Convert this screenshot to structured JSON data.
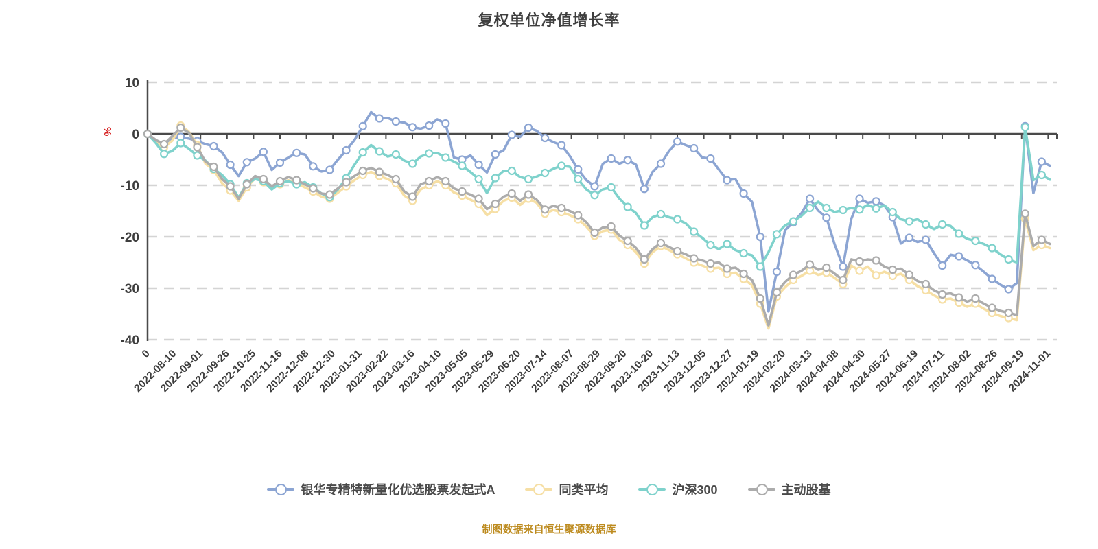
{
  "caption": "制图数据来自恒生聚源数据库",
  "chart_data": {
    "type": "line",
    "title": "复权单位净值增长率",
    "ylabel": "%",
    "ylabel_color": "#d62222",
    "ylim": [
      -40,
      10
    ],
    "y_ticks": [
      10,
      0,
      -10,
      -20,
      -30,
      -40
    ],
    "grid": "dashed horizontal gridlines, x-axis line drawn at zero with down ticks",
    "legend_position": "bottom",
    "marker_style": "white-filled circles with series-colored ring, shown every 2nd sample",
    "x_tick_labels": [
      "0",
      "2022-08-10",
      "2022-09-01",
      "2022-09-26",
      "2022-10-25",
      "2022-11-16",
      "2022-12-08",
      "2022-12-30",
      "2023-01-31",
      "2023-02-22",
      "2023-03-16",
      "2023-04-10",
      "2023-05-05",
      "2023-05-29",
      "2023-06-20",
      "2023-07-14",
      "2023-08-07",
      "2023-08-29",
      "2023-09-20",
      "2023-10-20",
      "2023-11-13",
      "2023-12-05",
      "2023-12-27",
      "2024-01-19",
      "2024-02-20",
      "2024-03-13",
      "2024-04-08",
      "2024-04-30",
      "2024-05-27",
      "2024-06-19",
      "2024-07-11",
      "2024-08-02",
      "2024-08-26",
      "2024-09-19",
      "2024-11-01"
    ],
    "series": [
      {
        "name": "银华专精特新量化优选股票发起式A",
        "color": "#8ca5d3",
        "values": [
          0,
          -1.3,
          -2.2,
          -0.9,
          -0.6,
          -0.9,
          -1.4,
          -2.0,
          -2.4,
          -3.6,
          -6.0,
          -8.2,
          -5.5,
          -4.8,
          -3.5,
          -7.0,
          -5.6,
          -4.6,
          -3.7,
          -4.0,
          -6.3,
          -7.3,
          -7.0,
          -5.0,
          -3.2,
          -1.2,
          1.5,
          4.2,
          3.0,
          3.1,
          2.4,
          2.2,
          1.3,
          1.0,
          1.6,
          2.8,
          2.0,
          -4.6,
          -5.0,
          -4.2,
          -6.0,
          -7.5,
          -4.0,
          -3.2,
          -0.2,
          -0.6,
          1.2,
          0.6,
          -0.8,
          -1.6,
          -2.2,
          -4.3,
          -6.9,
          -9.0,
          -10.2,
          -5.8,
          -4.8,
          -5.8,
          -5.1,
          -6.0,
          -10.7,
          -7.4,
          -5.8,
          -3.3,
          -1.5,
          -2.2,
          -2.8,
          -4.6,
          -4.8,
          -6.9,
          -9.0,
          -8.8,
          -11.6,
          -13.2,
          -20.0,
          -34.5,
          -26.8,
          -18.7,
          -17.2,
          -15.4,
          -12.6,
          -14.9,
          -16.3,
          -21.5,
          -25.8,
          -16.5,
          -12.6,
          -13.4,
          -13.1,
          -13.9,
          -16.2,
          -21.3,
          -20.2,
          -21.0,
          -20.6,
          -23.2,
          -25.6,
          -23.5,
          -23.8,
          -24.6,
          -25.5,
          -26.8,
          -28.2,
          -29.3,
          -30.2,
          -29.0,
          1.5,
          -11.5,
          -5.4,
          -6.2
        ]
      },
      {
        "name": "同类平均",
        "color": "#f6dfa5",
        "values": [
          0,
          -1.6,
          -2.6,
          -1.3,
          1.6,
          0.4,
          -2.2,
          -5.8,
          -7.0,
          -9.6,
          -11.0,
          -13.0,
          -10.4,
          -8.6,
          -9.4,
          -10.6,
          -9.8,
          -9.0,
          -9.6,
          -10.4,
          -11.2,
          -12.2,
          -12.6,
          -11.4,
          -10.2,
          -9.0,
          -8.0,
          -7.4,
          -8.2,
          -8.8,
          -9.6,
          -12.0,
          -13.0,
          -10.8,
          -10.0,
          -9.2,
          -10.0,
          -11.4,
          -12.0,
          -12.8,
          -13.6,
          -15.8,
          -14.6,
          -13.0,
          -12.4,
          -13.8,
          -12.6,
          -13.4,
          -15.5,
          -14.8,
          -15.2,
          -15.8,
          -16.6,
          -18.0,
          -19.8,
          -18.9,
          -18.6,
          -20.6,
          -21.6,
          -23.0,
          -25.2,
          -23.0,
          -21.8,
          -22.6,
          -23.4,
          -24.2,
          -25.0,
          -25.6,
          -26.2,
          -26.0,
          -27.2,
          -27.0,
          -28.2,
          -29.4,
          -33.0,
          -37.8,
          -31.6,
          -29.8,
          -28.4,
          -27.6,
          -26.6,
          -27.4,
          -27.0,
          -28.0,
          -29.2,
          -25.6,
          -26.6,
          -25.8,
          -27.5,
          -26.8,
          -27.6,
          -27.2,
          -28.4,
          -29.6,
          -30.4,
          -31.4,
          -32.2,
          -32.0,
          -32.8,
          -33.6,
          -33.0,
          -34.0,
          -34.8,
          -35.4,
          -35.8,
          -36.2,
          -16.5,
          -22.6,
          -21.6,
          -22.2
        ]
      },
      {
        "name": "沪深300",
        "color": "#7fd2cc",
        "values": [
          0,
          -1.8,
          -3.9,
          -3.3,
          -1.8,
          -2.9,
          -4.2,
          -5.2,
          -6.8,
          -8.0,
          -9.8,
          -12.4,
          -9.6,
          -8.8,
          -9.2,
          -10.8,
          -9.6,
          -9.2,
          -9.8,
          -9.4,
          -10.4,
          -11.6,
          -12.3,
          -10.8,
          -8.6,
          -6.0,
          -3.6,
          -2.2,
          -3.4,
          -4.4,
          -4.0,
          -5.2,
          -5.8,
          -4.4,
          -3.8,
          -3.7,
          -4.6,
          -5.4,
          -6.2,
          -7.4,
          -8.8,
          -11.5,
          -8.6,
          -7.2,
          -7.2,
          -8.4,
          -8.8,
          -8.3,
          -7.6,
          -6.8,
          -6.2,
          -6.4,
          -8.8,
          -10.8,
          -11.9,
          -10.8,
          -10.4,
          -12.6,
          -14.2,
          -15.4,
          -17.8,
          -16.2,
          -15.6,
          -16.2,
          -16.6,
          -17.4,
          -19.0,
          -20.2,
          -21.6,
          -22.4,
          -21.4,
          -22.6,
          -23.2,
          -23.6,
          -25.8,
          -23.0,
          -19.5,
          -17.8,
          -17.0,
          -15.9,
          -14.4,
          -13.2,
          -14.4,
          -15.2,
          -14.8,
          -14.4,
          -14.7,
          -13.8,
          -14.5,
          -13.9,
          -15.2,
          -16.6,
          -17.0,
          -16.6,
          -17.6,
          -18.5,
          -17.6,
          -17.9,
          -19.4,
          -20.4,
          -20.8,
          -21.4,
          -22.2,
          -23.4,
          -24.4,
          -25.0,
          1.3,
          -9.0,
          -8.0,
          -8.9
        ]
      },
      {
        "name": "主动股基",
        "color": "#acacac",
        "values": [
          0,
          -1.2,
          -2.0,
          -0.4,
          1.2,
          0.2,
          -2.6,
          -5.4,
          -6.4,
          -8.8,
          -10.2,
          -12.6,
          -9.8,
          -8.2,
          -8.8,
          -10.2,
          -9.2,
          -8.4,
          -9.0,
          -9.8,
          -10.6,
          -11.6,
          -11.8,
          -10.6,
          -9.4,
          -8.2,
          -7.2,
          -6.6,
          -7.4,
          -8.0,
          -8.8,
          -11.2,
          -12.2,
          -9.8,
          -9.2,
          -8.4,
          -9.2,
          -10.6,
          -11.2,
          -11.8,
          -12.6,
          -14.6,
          -13.6,
          -12.2,
          -11.6,
          -13.0,
          -11.8,
          -12.8,
          -14.7,
          -14.0,
          -14.4,
          -15.0,
          -15.8,
          -17.2,
          -19.2,
          -18.2,
          -18.0,
          -19.8,
          -20.8,
          -22.2,
          -24.4,
          -22.4,
          -21.2,
          -22.0,
          -22.8,
          -23.4,
          -24.2,
          -24.6,
          -25.2,
          -25.0,
          -26.2,
          -26.0,
          -27.2,
          -28.4,
          -32.0,
          -37.2,
          -30.8,
          -28.8,
          -27.4,
          -26.6,
          -25.4,
          -26.4,
          -26.0,
          -27.2,
          -28.4,
          -24.4,
          -24.8,
          -24.4,
          -24.6,
          -25.8,
          -26.4,
          -26.2,
          -27.4,
          -28.6,
          -29.2,
          -30.4,
          -31.2,
          -31.0,
          -31.8,
          -32.6,
          -32.0,
          -33.0,
          -33.8,
          -34.4,
          -34.8,
          -35.2,
          -15.5,
          -21.8,
          -20.6,
          -21.4
        ]
      }
    ],
    "style": {
      "grid_color": "#d4d4d4",
      "axis_color": "#4a4a4a",
      "tick_label_color": "#3d3d3d",
      "title_color": "#3f3f3f",
      "caption_color": "#bd8b1f"
    }
  }
}
